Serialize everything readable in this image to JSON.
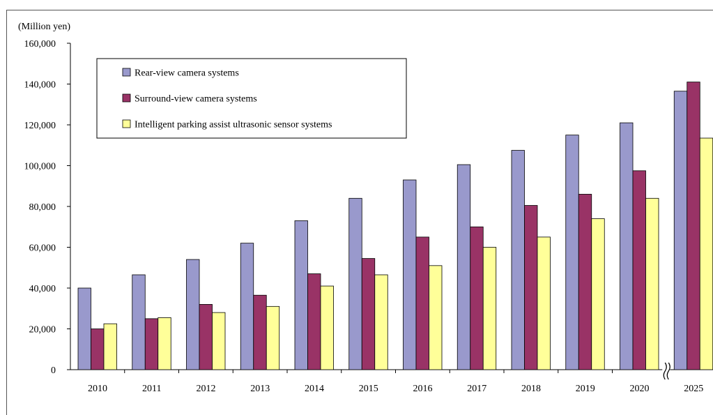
{
  "chart_data": {
    "type": "bar",
    "title": "",
    "ylabel": "(Million yen)",
    "xlabel": "",
    "ylim": [
      0,
      160000
    ],
    "yticks": [
      0,
      20000,
      40000,
      60000,
      80000,
      100000,
      120000,
      140000,
      160000
    ],
    "ytick_labels": [
      "0",
      "20,000",
      "40,000",
      "60,000",
      "80,000",
      "100,000",
      "120,000",
      "140,000",
      "160,000"
    ],
    "categories": [
      "2010",
      "2011",
      "2012",
      "2013",
      "2014",
      "2015",
      "2016",
      "2017",
      "2018",
      "2019",
      "2020",
      "2025"
    ],
    "axis_break_before": "2025",
    "grid": false,
    "legend_position": "top-left",
    "series": [
      {
        "name": "Rear-view camera systems",
        "color": "#9999cc",
        "values": [
          40000,
          46500,
          54000,
          62000,
          73000,
          84000,
          93000,
          100500,
          107500,
          115000,
          121000,
          136500
        ]
      },
      {
        "name": "Surround-view camera systems",
        "color": "#993366",
        "values": [
          20000,
          25000,
          32000,
          36500,
          47000,
          54500,
          65000,
          70000,
          80500,
          86000,
          97500,
          141000
        ]
      },
      {
        "name": "Intelligent parking assist ultrasonic sensor systems",
        "color": "#ffff99",
        "values": [
          22500,
          25500,
          28000,
          31000,
          41000,
          46500,
          51000,
          60000,
          65000,
          74000,
          84000,
          113500
        ]
      }
    ]
  }
}
